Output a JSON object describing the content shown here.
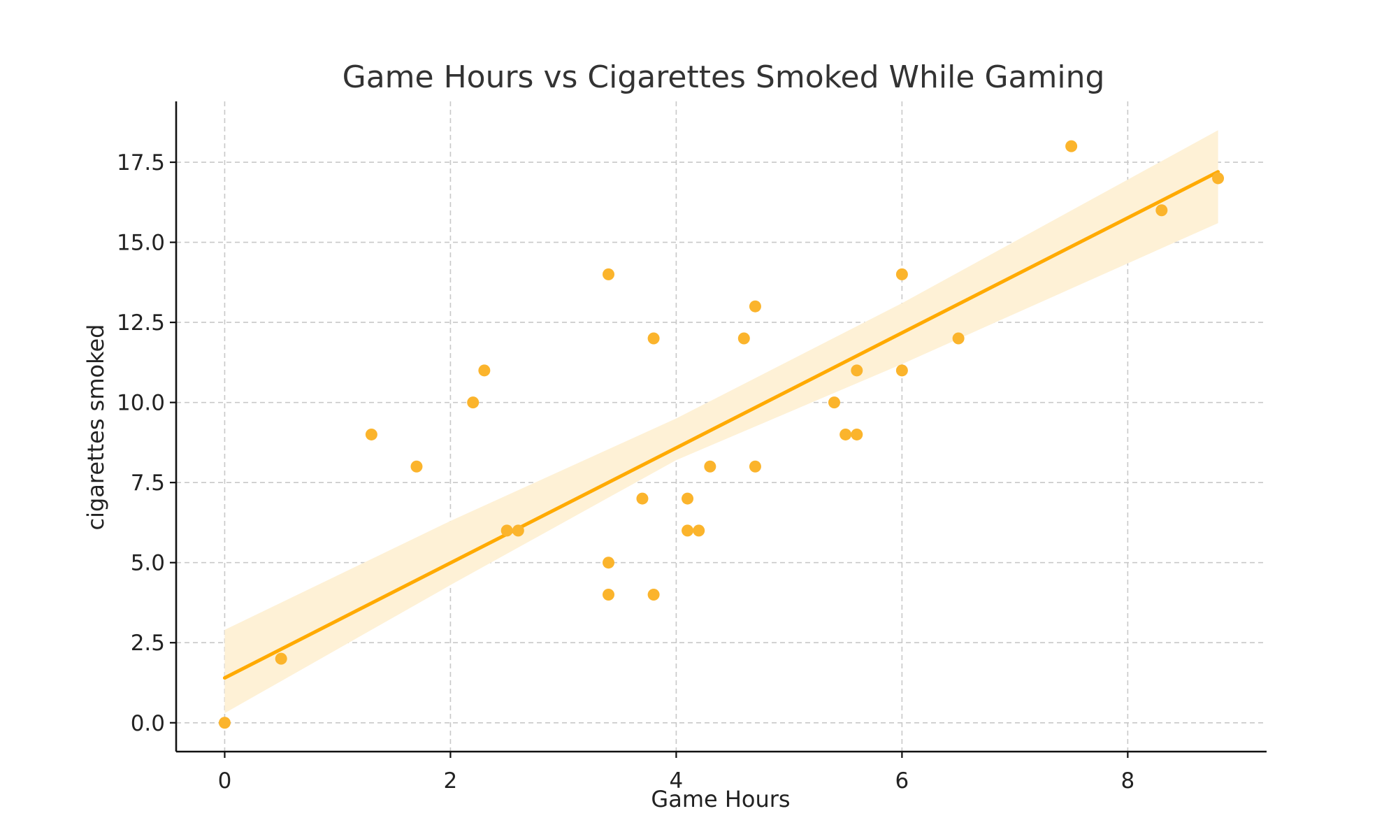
{
  "chart_data": {
    "type": "scatter",
    "title": "Game Hours vs Cigarettes Smoked While Gaming",
    "xlabel": "Game Hours",
    "ylabel": "cigarettes smoked",
    "xlim": [
      -0.43,
      9.23
    ],
    "ylim": [
      -0.9,
      19.4
    ],
    "xticks": [
      0,
      2,
      4,
      6,
      8
    ],
    "xtick_labels": [
      "0",
      "2",
      "4",
      "6",
      "8"
    ],
    "yticks": [
      0,
      2.5,
      5,
      7.5,
      10,
      12.5,
      15,
      17.5
    ],
    "ytick_labels": [
      "0.0",
      "2.5",
      "5.0",
      "7.5",
      "10.0",
      "12.5",
      "15.0",
      "17.5"
    ],
    "grid": true,
    "colors": {
      "points": "#FBB42C",
      "regression_line": "#FFAA00",
      "confidence_band": "#FEF1D6"
    },
    "series": [
      {
        "points": [
          {
            "x": 0,
            "y": 0
          },
          {
            "x": 0.5,
            "y": 2
          },
          {
            "x": 1.3,
            "y": 9
          },
          {
            "x": 1.7,
            "y": 8
          },
          {
            "x": 2.2,
            "y": 10
          },
          {
            "x": 2.3,
            "y": 11
          },
          {
            "x": 2.5,
            "y": 6
          },
          {
            "x": 2.6,
            "y": 6
          },
          {
            "x": 3.4,
            "y": 14
          },
          {
            "x": 3.4,
            "y": 5
          },
          {
            "x": 3.4,
            "y": 4
          },
          {
            "x": 3.7,
            "y": 7
          },
          {
            "x": 3.8,
            "y": 12
          },
          {
            "x": 3.8,
            "y": 4
          },
          {
            "x": 4.1,
            "y": 7
          },
          {
            "x": 4.1,
            "y": 6
          },
          {
            "x": 4.2,
            "y": 6
          },
          {
            "x": 4.3,
            "y": 8
          },
          {
            "x": 4.6,
            "y": 12
          },
          {
            "x": 4.7,
            "y": 13
          },
          {
            "x": 4.7,
            "y": 8
          },
          {
            "x": 5.4,
            "y": 10
          },
          {
            "x": 5.5,
            "y": 9
          },
          {
            "x": 5.6,
            "y": 9
          },
          {
            "x": 5.6,
            "y": 11
          },
          {
            "x": 6.0,
            "y": 14
          },
          {
            "x": 6.0,
            "y": 11
          },
          {
            "x": 6.5,
            "y": 12
          },
          {
            "x": 7.5,
            "y": 18
          },
          {
            "x": 8.3,
            "y": 16
          },
          {
            "x": 8.8,
            "y": 17
          }
        ]
      }
    ],
    "regression": {
      "x_range": [
        0,
        8.8
      ],
      "line_y": [
        1.4,
        17.2
      ],
      "band": [
        {
          "x": 0,
          "lower": 0.3,
          "upper": 2.9
        },
        {
          "x": 2,
          "lower": 4.3,
          "upper": 6.3
        },
        {
          "x": 4,
          "lower": 8.2,
          "upper": 9.5
        },
        {
          "x": 6,
          "lower": 11.2,
          "upper": 13.1
        },
        {
          "x": 8.8,
          "lower": 15.6,
          "upper": 18.5
        }
      ]
    }
  }
}
